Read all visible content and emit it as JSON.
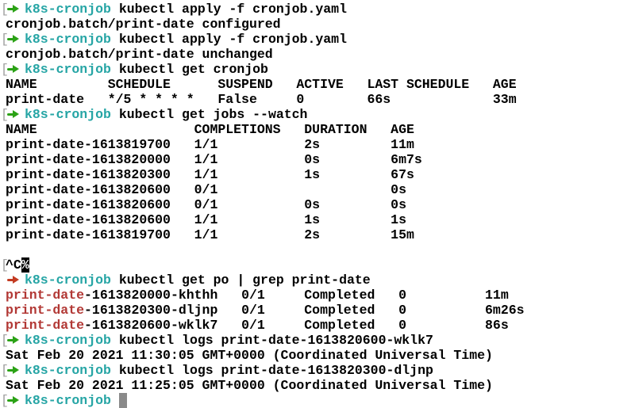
{
  "terminal": {
    "background": "#ffffff",
    "colors": {
      "text": "#000000",
      "green": "#2BA216",
      "teal": "#26A5A5",
      "red_arrow": "#C33B22",
      "grep_red": "#B23835",
      "bracket": "#A0A0A0",
      "cursor": "#8A8A8A",
      "inverse_bg": "#000000",
      "inverse_fg": "#ffffff"
    },
    "prompt": {
      "mark": "[",
      "arrow": "➜",
      "dir": "k8s-cronjob",
      "partial_line_marker": "%"
    },
    "lines": [
      {
        "mark": true,
        "segments": [
          {
            "arrow": true,
            "color": "green",
            "name": "prompt-arrow"
          },
          {
            "text": "k8s-cronjob",
            "color": "teal",
            "name": "prompt-dir"
          },
          {
            "text": " kubectl apply -f cronjob.yaml",
            "name": "command-text"
          }
        ]
      },
      {
        "segments": [
          {
            "text": "cronjob.batch/print-date configured",
            "name": "output-text"
          }
        ]
      },
      {
        "mark": true,
        "segments": [
          {
            "arrow": true,
            "color": "green",
            "name": "prompt-arrow"
          },
          {
            "text": "k8s-cronjob",
            "color": "teal",
            "name": "prompt-dir"
          },
          {
            "text": " kubectl apply -f cronjob.yaml",
            "name": "command-text"
          }
        ]
      },
      {
        "segments": [
          {
            "text": "cronjob.batch/print-date unchanged",
            "name": "output-text"
          }
        ]
      },
      {
        "mark": true,
        "segments": [
          {
            "arrow": true,
            "color": "green",
            "name": "prompt-arrow"
          },
          {
            "text": "k8s-cronjob",
            "color": "teal",
            "name": "prompt-dir"
          },
          {
            "text": " kubectl get cronjob",
            "name": "command-text"
          }
        ]
      },
      {
        "segments": [
          {
            "text": "NAME         SCHEDULE      SUSPEND   ACTIVE   LAST SCHEDULE   AGE",
            "name": "table-header"
          }
        ]
      },
      {
        "segments": [
          {
            "text": "print-date   */5 * * * *   False     0        66s             33m",
            "name": "table-row"
          }
        ]
      },
      {
        "mark": true,
        "segments": [
          {
            "arrow": true,
            "color": "green",
            "name": "prompt-arrow"
          },
          {
            "text": "k8s-cronjob",
            "color": "teal",
            "name": "prompt-dir"
          },
          {
            "text": " kubectl get jobs --watch",
            "name": "command-text"
          }
        ]
      },
      {
        "segments": [
          {
            "text": "NAME                    COMPLETIONS   DURATION   AGE",
            "name": "table-header"
          }
        ]
      },
      {
        "segments": [
          {
            "text": "print-date-1613819700   1/1           2s         11m",
            "name": "table-row"
          }
        ]
      },
      {
        "segments": [
          {
            "text": "print-date-1613820000   1/1           0s         6m7s",
            "name": "table-row"
          }
        ]
      },
      {
        "segments": [
          {
            "text": "print-date-1613820300   1/1           1s         67s",
            "name": "table-row"
          }
        ]
      },
      {
        "segments": [
          {
            "text": "print-date-1613820600   0/1                      0s",
            "name": "table-row"
          }
        ]
      },
      {
        "segments": [
          {
            "text": "print-date-1613820600   0/1           0s         0s",
            "name": "table-row"
          }
        ]
      },
      {
        "segments": [
          {
            "text": "print-date-1613820600   1/1           1s         1s",
            "name": "table-row"
          }
        ]
      },
      {
        "segments": [
          {
            "text": "print-date-1613819700   1/1           2s         15m",
            "name": "table-row"
          }
        ]
      },
      {
        "segments": []
      },
      {
        "mark": true,
        "segments": [
          {
            "text": "^C",
            "name": "interrupt-indicator"
          },
          {
            "text": "%",
            "inverse": true,
            "name": "partial-line-marker"
          }
        ]
      },
      {
        "segments": [
          {
            "arrow": true,
            "color": "red_arrow",
            "name": "prompt-arrow"
          },
          {
            "text": "k8s-cronjob",
            "color": "teal",
            "name": "prompt-dir"
          },
          {
            "text": " kubectl get po | grep print-date",
            "name": "command-text"
          }
        ]
      },
      {
        "segments": [
          {
            "text": "print-date",
            "color": "grep_red",
            "name": "grep-match"
          },
          {
            "text": "-1613820000-khthh   0/1     Completed   0          11m",
            "name": "table-row"
          }
        ]
      },
      {
        "segments": [
          {
            "text": "print-date",
            "color": "grep_red",
            "name": "grep-match"
          },
          {
            "text": "-1613820300-dljnp   0/1     Completed   0          6m26s",
            "name": "table-row"
          }
        ]
      },
      {
        "segments": [
          {
            "text": "print-date",
            "color": "grep_red",
            "name": "grep-match"
          },
          {
            "text": "-1613820600-wklk7   0/1     Completed   0          86s",
            "name": "table-row"
          }
        ]
      },
      {
        "mark": true,
        "segments": [
          {
            "arrow": true,
            "color": "green",
            "name": "prompt-arrow"
          },
          {
            "text": "k8s-cronjob",
            "color": "teal",
            "name": "prompt-dir"
          },
          {
            "text": " kubectl logs print-date-1613820600-wklk7",
            "name": "command-text"
          }
        ]
      },
      {
        "segments": [
          {
            "text": "Sat Feb 20 2021 11:30:05 GMT+0000 (Coordinated Universal Time)",
            "name": "output-text"
          }
        ]
      },
      {
        "mark": true,
        "segments": [
          {
            "arrow": true,
            "color": "green",
            "name": "prompt-arrow"
          },
          {
            "text": "k8s-cronjob",
            "color": "teal",
            "name": "prompt-dir"
          },
          {
            "text": " kubectl logs print-date-1613820300-dljnp",
            "name": "command-text"
          }
        ]
      },
      {
        "segments": [
          {
            "text": "Sat Feb 20 2021 11:25:05 GMT+0000 (Coordinated Universal Time)",
            "name": "output-text"
          }
        ]
      },
      {
        "mark": true,
        "segments": [
          {
            "arrow": true,
            "color": "green",
            "name": "prompt-arrow"
          },
          {
            "text": "k8s-cronjob",
            "color": "teal",
            "name": "prompt-dir"
          },
          {
            "text": " ",
            "name": "output-text"
          },
          {
            "cursor": true,
            "name": "cursor-block"
          }
        ]
      }
    ]
  }
}
